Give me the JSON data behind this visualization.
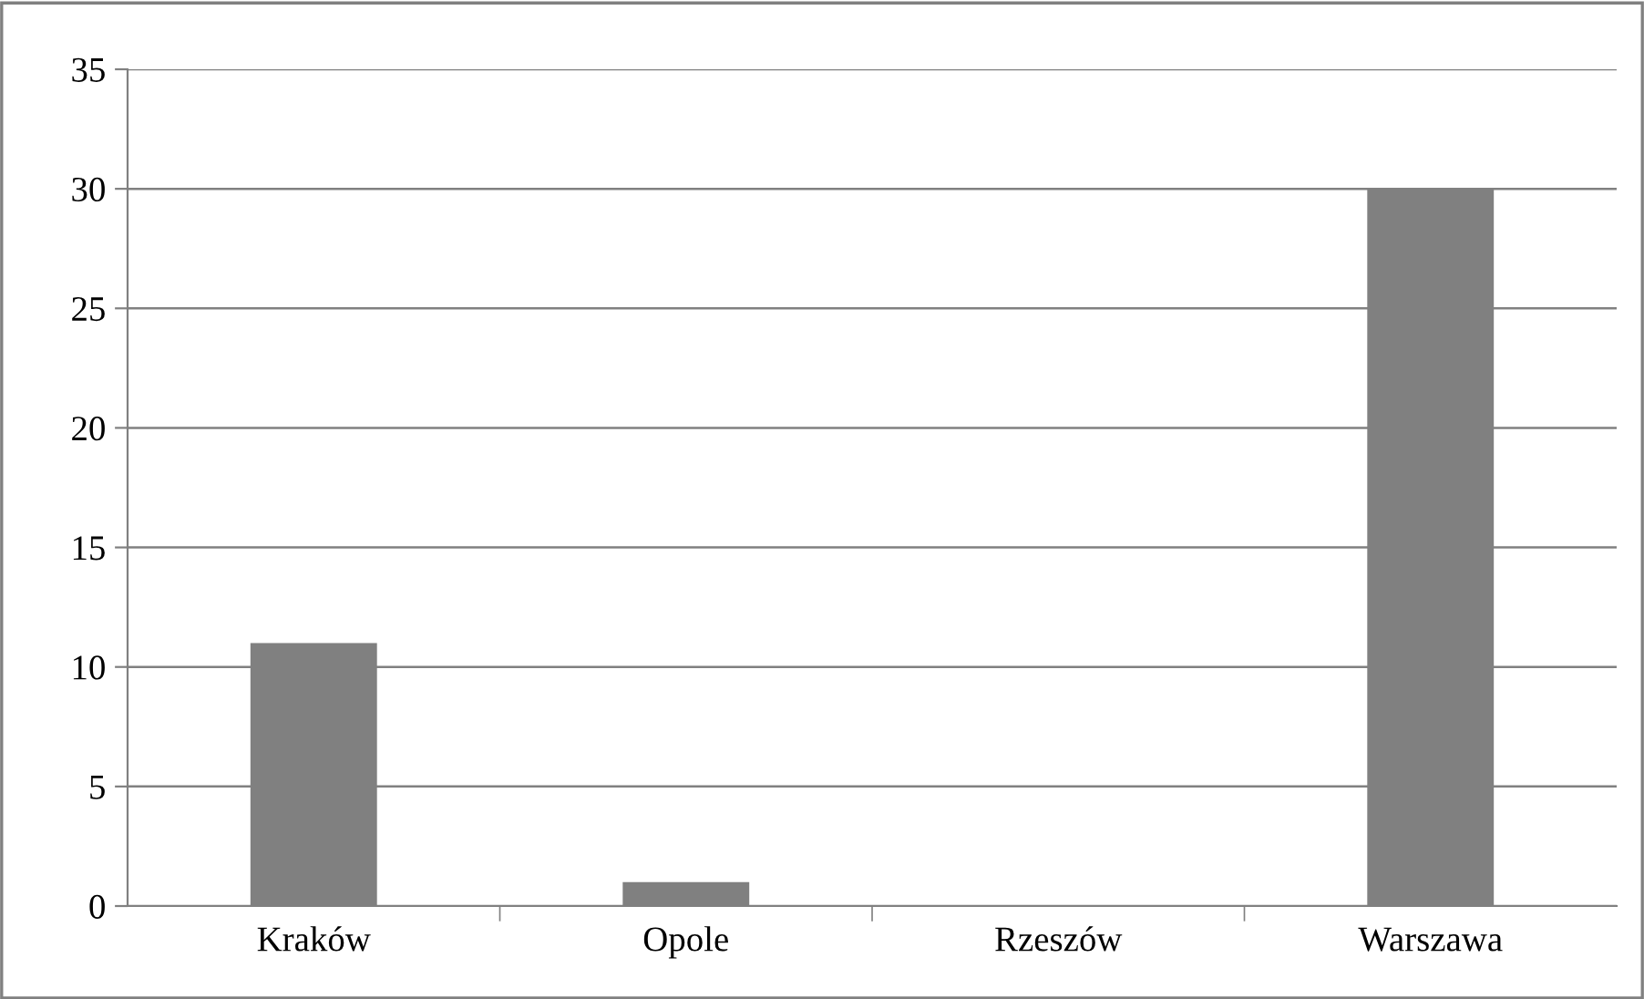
{
  "chart_data": {
    "type": "bar",
    "categories": [
      "Kraków",
      "Opole",
      "Rzeszów",
      "Warszawa"
    ],
    "values": [
      11,
      1,
      0,
      30
    ],
    "color": "#808080",
    "ylim": [
      0,
      35
    ],
    "yticks": [
      0,
      5,
      10,
      15,
      20,
      25,
      30,
      35
    ],
    "grid": "y",
    "legend": false
  }
}
